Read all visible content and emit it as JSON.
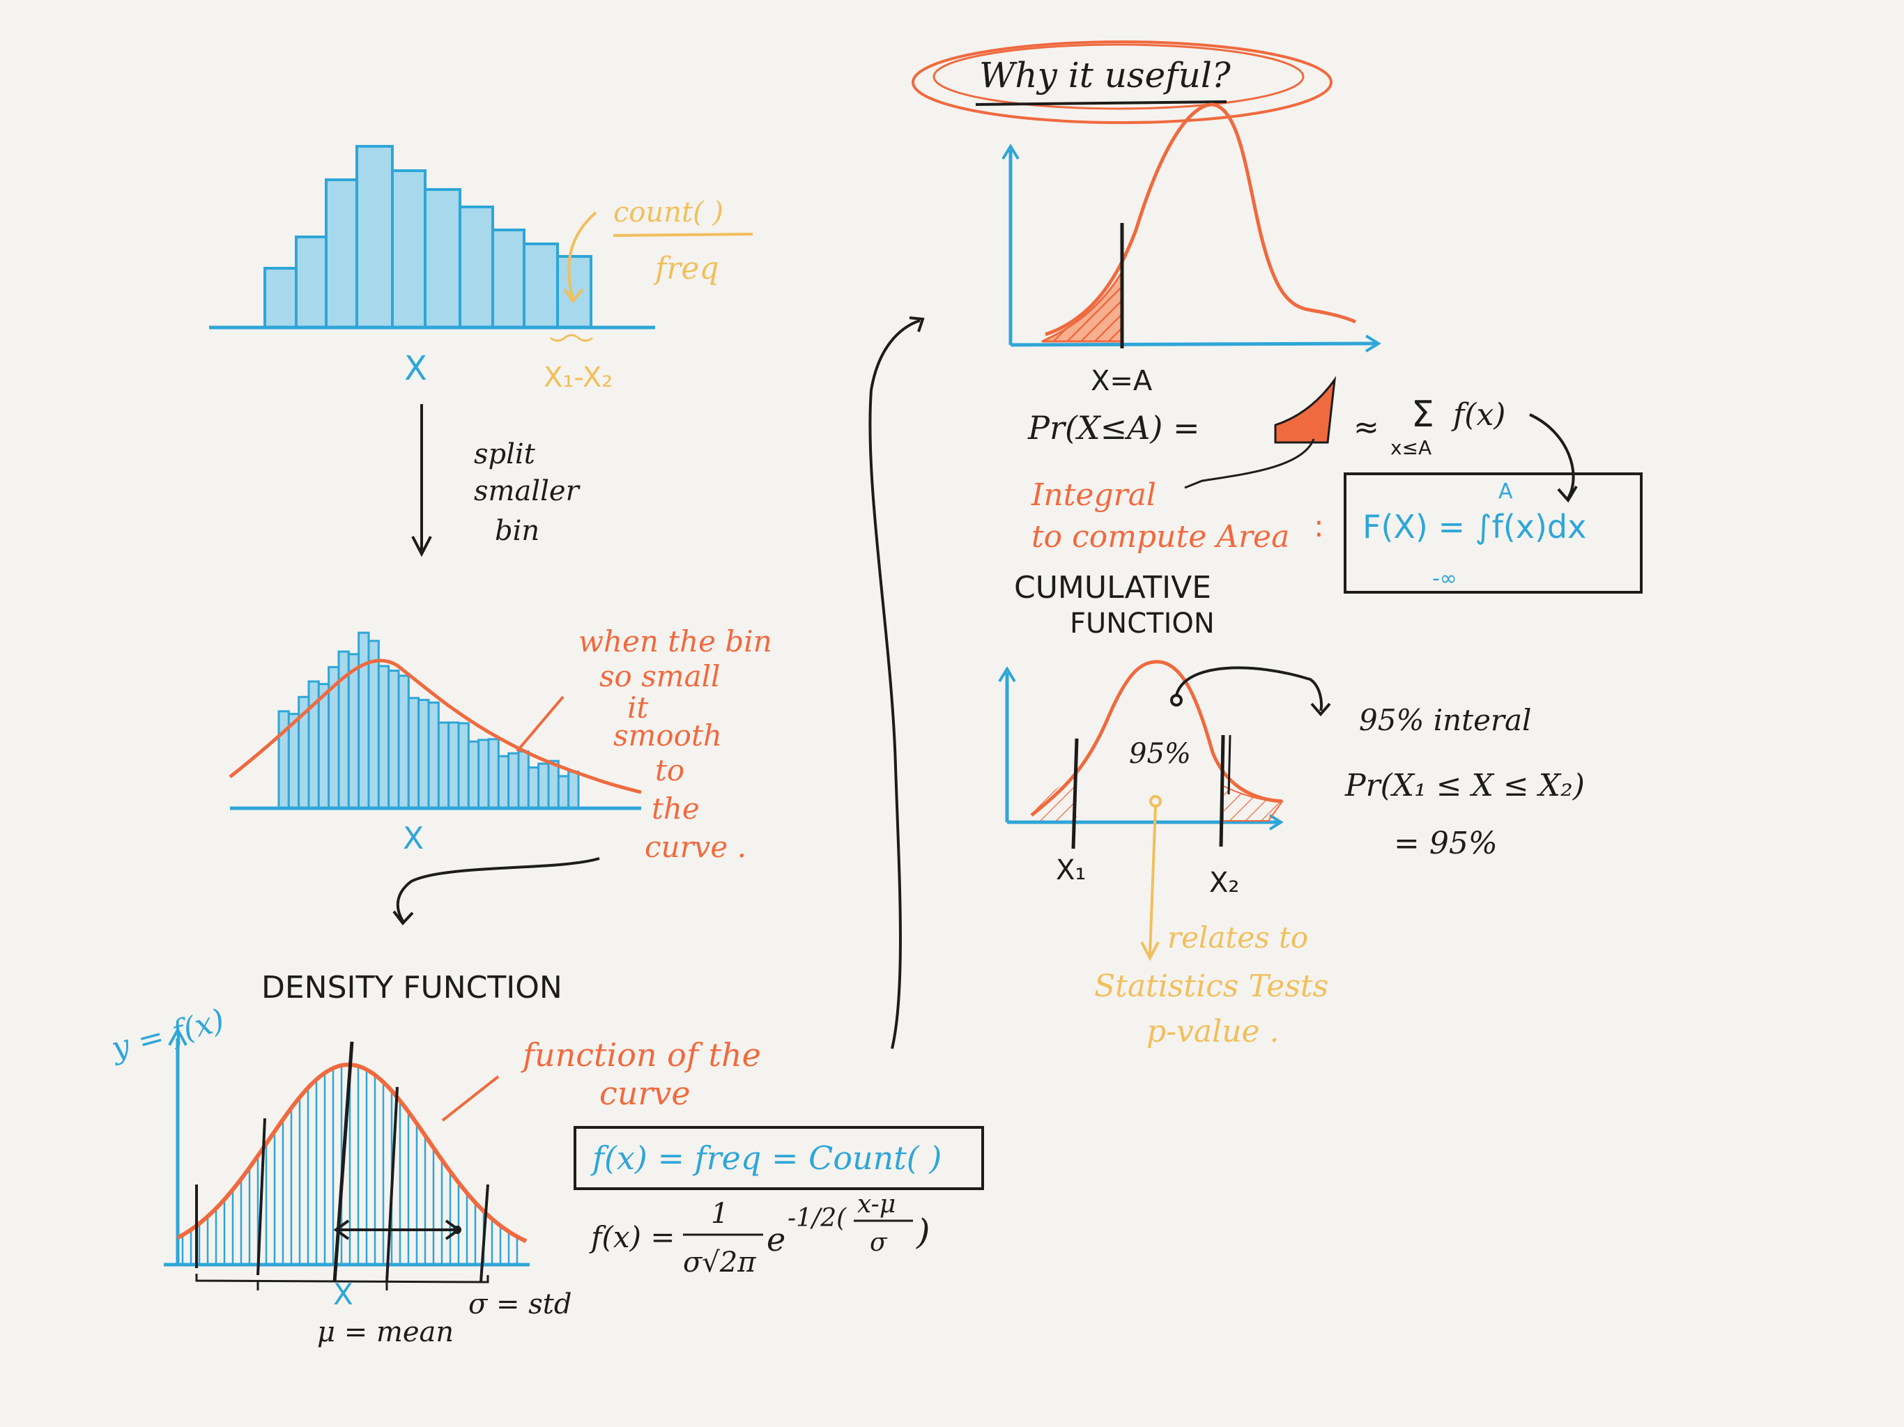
{
  "colors": {
    "background": "#f5f3ef",
    "blue": "#2ea6d8",
    "blue_fill": "#a8d8ec",
    "orange": "#ef6a3f",
    "yellow": "#f1bf5c",
    "ink": "#1c1c1c"
  },
  "histogram": {
    "annotation_count": "count( )",
    "annotation_freq": "freq",
    "axis_x": "X",
    "bin_range": "X₁-X₂"
  },
  "split_note": [
    "split",
    "smaller",
    "bin"
  ],
  "smoothing_note": [
    "when the bin",
    "so small",
    "it",
    "smooth",
    "to",
    "the",
    "curve ."
  ],
  "smooth_hist": {
    "axis_x": "X"
  },
  "density": {
    "title": "DENSITY FUNCTION",
    "y_label": "y = f(x)",
    "axis_x": "X",
    "curve_note": [
      "function of the",
      "curve"
    ],
    "formula_box": "f(x) = freq = Count( )",
    "formula_prefix": "f(x) =",
    "formula_num": "1",
    "formula_den": "σ√2π",
    "formula_e": "e",
    "formula_exp": "-1/2(",
    "formula_frac_num": "x-μ",
    "formula_frac_den": "σ",
    "formula_close": ")",
    "mean_label": "μ = mean",
    "std_label": "σ  = std"
  },
  "useful": {
    "title": "Why it useful?",
    "x_marker": "X=A",
    "prob_label": "Pr(X≤A) =",
    "approx": "≈",
    "sum_symbol": "Σ",
    "sum_sub": "x≤A",
    "sum_term": "f(x)",
    "integral_note": [
      "Integral",
      "to compute Area"
    ],
    "colon": ":",
    "cdf_formula": "F(X) = ∫f(x)dx",
    "cdf_upper": "A",
    "cdf_lower": "-∞",
    "cdf_title": [
      "CUMULATIVE",
      "FUNCTION"
    ]
  },
  "interval": {
    "center_label": "95%",
    "x1": "X₁",
    "x2": "X₂",
    "note_title": "95% interal",
    "note_prob": "Pr(X₁ ≤ X ≤ X₂)",
    "note_eq": "= 95%",
    "tests_note": [
      "relates to",
      "Statistics Tests",
      "p-value ."
    ]
  }
}
